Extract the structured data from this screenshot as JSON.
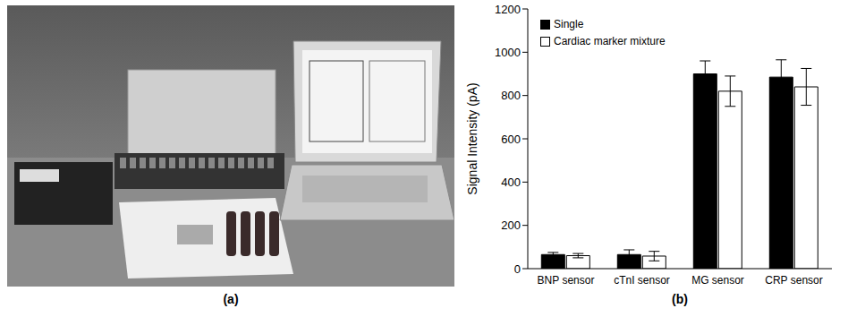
{
  "figure": {
    "panel_labels": [
      "(a)",
      "(b)"
    ]
  },
  "chart_data": {
    "type": "bar",
    "y_label": "Signal Intensity (pA)",
    "categories": [
      "BNP sensor",
      "cTnI sensor",
      "MG sensor",
      "CRP sensor"
    ],
    "series": [
      {
        "name": "Single",
        "color": "#000000",
        "values": [
          65,
          65,
          900,
          885
        ],
        "errors": [
          10,
          22,
          60,
          80
        ]
      },
      {
        "name": "Cardiac marker mixture",
        "color": "#ffffff",
        "values": [
          60,
          58,
          820,
          840
        ],
        "errors": [
          10,
          22,
          70,
          85
        ]
      }
    ],
    "ylim": [
      0,
      1200
    ],
    "yticks": [
      0,
      200,
      400,
      600,
      800,
      1000,
      1200
    ],
    "grid": false,
    "legend": "upper left"
  }
}
